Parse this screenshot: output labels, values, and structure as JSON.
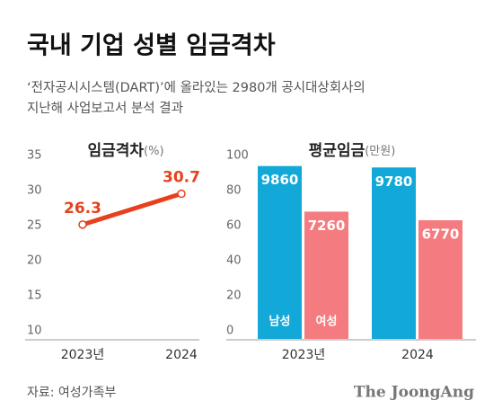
{
  "title": "국내 기업 성별 임금격차",
  "subtitle": [
    "‘전자공시시스템(DART)’에 올라있는 2980개 공시대상회사의",
    "지난해 사업보고서 분석 결과"
  ],
  "source": "자료: 여성가족부",
  "brand": "The JoongAng",
  "chart_data": [
    {
      "type": "line",
      "title": "임금격차",
      "unit": "(%)",
      "categories": [
        "2023년",
        "2024"
      ],
      "values": [
        26.3,
        30.7
      ],
      "color": "#e8401c",
      "ylim": [
        10,
        35
      ],
      "yticks": [
        10,
        15,
        20,
        25,
        30,
        35
      ]
    },
    {
      "type": "bar",
      "title": "평균임금",
      "unit": "(만원)",
      "categories": [
        "2023년",
        "2024"
      ],
      "series": [
        {
          "name": "남성",
          "color": "#12a8d8",
          "values": [
            98.6,
            97.8
          ],
          "value_labels": [
            "9860",
            "9780"
          ]
        },
        {
          "name": "여성",
          "color": "#f47c80",
          "values": [
            72.6,
            67.7
          ],
          "value_labels": [
            "7260",
            "6770"
          ]
        }
      ],
      "ylim": [
        0,
        100
      ],
      "yticks": [
        0,
        20,
        40,
        60,
        80,
        100
      ]
    }
  ]
}
